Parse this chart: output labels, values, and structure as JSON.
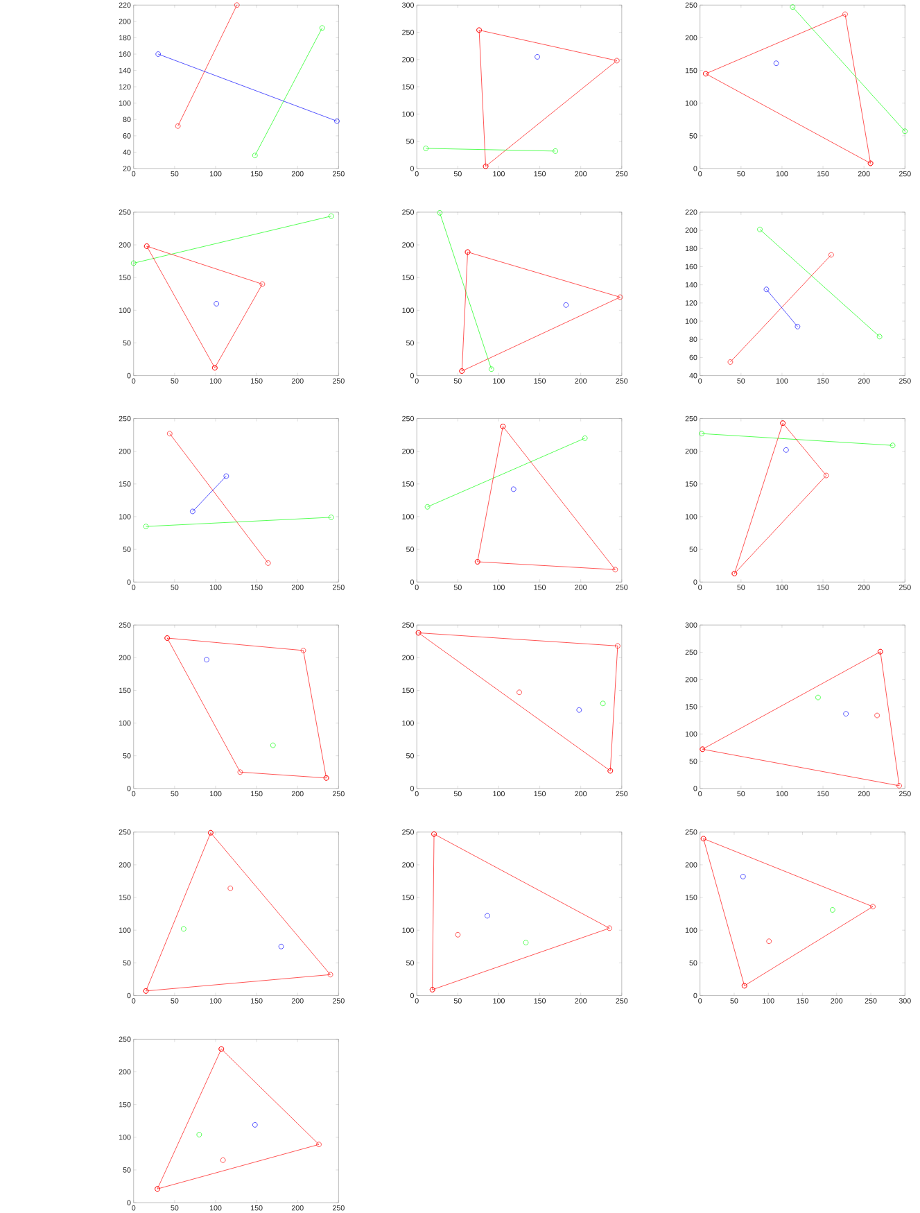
{
  "chart_data": [
    {
      "type": "line",
      "marker": "circle",
      "xlim": [
        0,
        250
      ],
      "ylim": [
        20,
        220
      ],
      "xticks": [
        0,
        50,
        100,
        150,
        200,
        250
      ],
      "yticks": [
        20,
        40,
        60,
        80,
        100,
        120,
        140,
        160,
        180,
        200,
        220
      ],
      "series": [
        {
          "color": "#ff0000",
          "x": [
            54,
            126
          ],
          "values": [
            72,
            220
          ]
        },
        {
          "color": "#00ff00",
          "x": [
            148,
            230
          ],
          "values": [
            36,
            192
          ]
        },
        {
          "color": "#0000ff",
          "x": [
            30,
            248
          ],
          "values": [
            160,
            78
          ]
        }
      ]
    },
    {
      "type": "line",
      "marker": "circle",
      "xlim": [
        0,
        250
      ],
      "ylim": [
        0,
        300
      ],
      "xticks": [
        0,
        50,
        100,
        150,
        200,
        250
      ],
      "yticks": [
        0,
        50,
        100,
        150,
        200,
        250,
        300
      ],
      "series": [
        {
          "type": "line",
          "color": "#ff0000",
          "x": [
            76,
            244,
            84,
            76
          ],
          "values": [
            254,
            198,
            4,
            254
          ]
        },
        {
          "type": "scatter",
          "color": "#0000ff",
          "x": [
            147
          ],
          "values": [
            205
          ]
        },
        {
          "type": "line",
          "color": "#00ff00",
          "x": [
            11,
            169
          ],
          "values": [
            37,
            32
          ]
        }
      ]
    },
    {
      "type": "line",
      "marker": "circle",
      "xlim": [
        0,
        250
      ],
      "ylim": [
        0,
        250
      ],
      "xticks": [
        0,
        50,
        100,
        150,
        200,
        250
      ],
      "yticks": [
        0,
        50,
        100,
        150,
        200,
        250
      ],
      "series": [
        {
          "type": "line",
          "color": "#ff0000",
          "x": [
            7,
            177,
            208,
            7
          ],
          "values": [
            145,
            236,
            8,
            145
          ]
        },
        {
          "type": "line",
          "color": "#00ff00",
          "x": [
            113,
            250
          ],
          "values": [
            247,
            57
          ]
        },
        {
          "type": "scatter",
          "color": "#0000ff",
          "x": [
            93
          ],
          "values": [
            161
          ]
        }
      ]
    },
    {
      "type": "line",
      "marker": "circle",
      "xlim": [
        0,
        250
      ],
      "ylim": [
        0,
        250
      ],
      "xticks": [
        0,
        50,
        100,
        150,
        200,
        250
      ],
      "yticks": [
        0,
        50,
        100,
        150,
        200,
        250
      ],
      "series": [
        {
          "type": "line",
          "color": "#00ff00",
          "x": [
            0,
            241
          ],
          "values": [
            172,
            244
          ]
        },
        {
          "type": "line",
          "color": "#ff0000",
          "x": [
            16,
            157,
            99,
            16
          ],
          "values": [
            198,
            140,
            12,
            198
          ]
        },
        {
          "type": "scatter",
          "color": "#0000ff",
          "x": [
            101
          ],
          "values": [
            110
          ]
        }
      ]
    },
    {
      "type": "line",
      "marker": "circle",
      "xlim": [
        0,
        250
      ],
      "ylim": [
        0,
        250
      ],
      "xticks": [
        0,
        50,
        100,
        150,
        200,
        250
      ],
      "yticks": [
        0,
        50,
        100,
        150,
        200,
        250
      ],
      "series": [
        {
          "type": "line",
          "color": "#00ff00",
          "x": [
            28,
            91
          ],
          "values": [
            249,
            10
          ]
        },
        {
          "type": "line",
          "color": "#ff0000",
          "x": [
            62,
            248,
            55,
            62
          ],
          "values": [
            189,
            120,
            7,
            189
          ]
        },
        {
          "type": "scatter",
          "color": "#0000ff",
          "x": [
            182
          ],
          "values": [
            108
          ]
        }
      ]
    },
    {
      "type": "line",
      "marker": "circle",
      "xlim": [
        0,
        250
      ],
      "ylim": [
        40,
        220
      ],
      "xticks": [
        0,
        50,
        100,
        150,
        200,
        250
      ],
      "yticks": [
        40,
        60,
        80,
        100,
        120,
        140,
        160,
        180,
        200,
        220
      ],
      "series": [
        {
          "type": "line",
          "color": "#00ff00",
          "x": [
            73,
            219
          ],
          "values": [
            201,
            83
          ]
        },
        {
          "type": "line",
          "color": "#ff0000",
          "x": [
            37,
            160
          ],
          "values": [
            55,
            173
          ]
        },
        {
          "type": "line",
          "color": "#0000ff",
          "x": [
            81,
            119
          ],
          "values": [
            135,
            94
          ]
        }
      ]
    },
    {
      "type": "line",
      "marker": "circle",
      "xlim": [
        0,
        250
      ],
      "ylim": [
        0,
        250
      ],
      "xticks": [
        0,
        50,
        100,
        150,
        200,
        250
      ],
      "yticks": [
        0,
        50,
        100,
        150,
        200,
        250
      ],
      "series": [
        {
          "type": "line",
          "color": "#ff0000",
          "x": [
            44,
            164
          ],
          "values": [
            227,
            29
          ]
        },
        {
          "type": "line",
          "color": "#0000ff",
          "x": [
            72,
            113
          ],
          "values": [
            108,
            162
          ]
        },
        {
          "type": "line",
          "color": "#00ff00",
          "x": [
            15,
            241
          ],
          "values": [
            85,
            99
          ]
        }
      ]
    },
    {
      "type": "line",
      "marker": "circle",
      "xlim": [
        0,
        250
      ],
      "ylim": [
        0,
        250
      ],
      "xticks": [
        0,
        50,
        100,
        150,
        200,
        250
      ],
      "yticks": [
        0,
        50,
        100,
        150,
        200,
        250
      ],
      "series": [
        {
          "type": "line",
          "color": "#00ff00",
          "x": [
            13,
            205
          ],
          "values": [
            115,
            220
          ]
        },
        {
          "type": "line",
          "color": "#ff0000",
          "x": [
            105,
            242,
            74,
            105
          ],
          "values": [
            238,
            19,
            31,
            238
          ]
        },
        {
          "type": "scatter",
          "color": "#0000ff",
          "x": [
            118
          ],
          "values": [
            142
          ]
        }
      ]
    },
    {
      "type": "line",
      "marker": "circle",
      "xlim": [
        0,
        250
      ],
      "ylim": [
        0,
        250
      ],
      "xticks": [
        0,
        50,
        100,
        150,
        200,
        250
      ],
      "yticks": [
        0,
        50,
        100,
        150,
        200,
        250
      ],
      "series": [
        {
          "type": "line",
          "color": "#00ff00",
          "x": [
            2,
            235
          ],
          "values": [
            227,
            209
          ]
        },
        {
          "type": "line",
          "color": "#ff0000",
          "x": [
            101,
            154,
            42,
            101
          ],
          "values": [
            243,
            163,
            13,
            243
          ]
        },
        {
          "type": "scatter",
          "color": "#0000ff",
          "x": [
            105
          ],
          "values": [
            202
          ]
        }
      ]
    },
    {
      "type": "line",
      "marker": "circle",
      "xlim": [
        0,
        250
      ],
      "ylim": [
        0,
        250
      ],
      "xticks": [
        0,
        50,
        100,
        150,
        200,
        250
      ],
      "yticks": [
        0,
        50,
        100,
        150,
        200,
        250
      ],
      "series": [
        {
          "type": "line",
          "color": "#ff0000",
          "x": [
            41,
            207,
            235,
            130,
            41
          ],
          "values": [
            230,
            211,
            16,
            25,
            230
          ]
        },
        {
          "type": "scatter",
          "color": "#0000ff",
          "x": [
            89
          ],
          "values": [
            197
          ]
        },
        {
          "type": "scatter",
          "color": "#00ff00",
          "x": [
            170
          ],
          "values": [
            66
          ]
        }
      ]
    },
    {
      "type": "line",
      "marker": "circle",
      "xlim": [
        0,
        250
      ],
      "ylim": [
        0,
        250
      ],
      "xticks": [
        0,
        50,
        100,
        150,
        200,
        250
      ],
      "yticks": [
        0,
        50,
        100,
        150,
        200,
        250
      ],
      "series": [
        {
          "type": "line",
          "color": "#ff0000",
          "x": [
            2,
            245,
            236,
            2
          ],
          "values": [
            238,
            218,
            27,
            238
          ]
        },
        {
          "type": "scatter",
          "color": "#ff0000",
          "x": [
            125
          ],
          "values": [
            147
          ]
        },
        {
          "type": "scatter",
          "color": "#0000ff",
          "x": [
            198
          ],
          "values": [
            120
          ]
        },
        {
          "type": "scatter",
          "color": "#00ff00",
          "x": [
            227
          ],
          "values": [
            130
          ]
        }
      ]
    },
    {
      "type": "line",
      "marker": "circle",
      "xlim": [
        0,
        250
      ],
      "ylim": [
        0,
        300
      ],
      "xticks": [
        0,
        50,
        100,
        150,
        200,
        250
      ],
      "yticks": [
        0,
        50,
        100,
        150,
        200,
        250,
        300
      ],
      "series": [
        {
          "type": "line",
          "color": "#ff0000",
          "x": [
            220,
            243,
            3,
            220
          ],
          "values": [
            251,
            5,
            72,
            251
          ]
        },
        {
          "type": "scatter",
          "color": "#00ff00",
          "x": [
            144
          ],
          "values": [
            167
          ]
        },
        {
          "type": "scatter",
          "color": "#0000ff",
          "x": [
            178
          ],
          "values": [
            137
          ]
        },
        {
          "type": "scatter",
          "color": "#ff0000",
          "x": [
            216
          ],
          "values": [
            134
          ]
        }
      ]
    },
    {
      "type": "line",
      "marker": "circle",
      "xlim": [
        0,
        250
      ],
      "ylim": [
        0,
        250
      ],
      "xticks": [
        0,
        50,
        100,
        150,
        200,
        250
      ],
      "yticks": [
        0,
        50,
        100,
        150,
        200,
        250
      ],
      "series": [
        {
          "type": "line",
          "color": "#ff0000",
          "x": [
            94,
            240,
            15,
            94
          ],
          "values": [
            249,
            32,
            7,
            249
          ]
        },
        {
          "type": "scatter",
          "color": "#ff0000",
          "x": [
            118
          ],
          "values": [
            164
          ]
        },
        {
          "type": "scatter",
          "color": "#00ff00",
          "x": [
            61
          ],
          "values": [
            102
          ]
        },
        {
          "type": "scatter",
          "color": "#0000ff",
          "x": [
            180
          ],
          "values": [
            75
          ]
        }
      ]
    },
    {
      "type": "line",
      "marker": "circle",
      "xlim": [
        0,
        250
      ],
      "ylim": [
        0,
        250
      ],
      "xticks": [
        0,
        50,
        100,
        150,
        200,
        250
      ],
      "yticks": [
        0,
        50,
        100,
        150,
        200,
        250
      ],
      "series": [
        {
          "type": "line",
          "color": "#ff0000",
          "x": [
            21,
            235,
            19,
            21
          ],
          "values": [
            247,
            103,
            9,
            247
          ]
        },
        {
          "type": "scatter",
          "color": "#ff0000",
          "x": [
            50
          ],
          "values": [
            93
          ]
        },
        {
          "type": "scatter",
          "color": "#0000ff",
          "x": [
            86
          ],
          "values": [
            122
          ]
        },
        {
          "type": "scatter",
          "color": "#00ff00",
          "x": [
            133
          ],
          "values": [
            81
          ]
        }
      ]
    },
    {
      "type": "line",
      "marker": "circle",
      "xlim": [
        0,
        300
      ],
      "ylim": [
        0,
        250
      ],
      "xticks": [
        0,
        50,
        100,
        150,
        200,
        250,
        300
      ],
      "yticks": [
        0,
        50,
        100,
        150,
        200,
        250
      ],
      "series": [
        {
          "type": "line",
          "color": "#ff0000",
          "x": [
            5,
            253,
            65,
            5
          ],
          "values": [
            240,
            136,
            15,
            240
          ]
        },
        {
          "type": "scatter",
          "color": "#0000ff",
          "x": [
            63
          ],
          "values": [
            182
          ]
        },
        {
          "type": "scatter",
          "color": "#00ff00",
          "x": [
            194
          ],
          "values": [
            131
          ]
        },
        {
          "type": "scatter",
          "color": "#ff0000",
          "x": [
            101
          ],
          "values": [
            83
          ]
        }
      ]
    },
    {
      "type": "line",
      "marker": "circle",
      "xlim": [
        0,
        250
      ],
      "ylim": [
        0,
        250
      ],
      "xticks": [
        0,
        50,
        100,
        150,
        200,
        250
      ],
      "yticks": [
        0,
        50,
        100,
        150,
        200,
        250
      ],
      "series": [
        {
          "type": "line",
          "color": "#ff0000",
          "x": [
            107,
            226,
            29,
            107
          ],
          "values": [
            235,
            89,
            21,
            235
          ]
        },
        {
          "type": "scatter",
          "color": "#00ff00",
          "x": [
            80
          ],
          "values": [
            104
          ]
        },
        {
          "type": "scatter",
          "color": "#0000ff",
          "x": [
            148
          ],
          "values": [
            119
          ]
        },
        {
          "type": "scatter",
          "color": "#ff0000",
          "x": [
            109
          ],
          "values": [
            65
          ]
        }
      ]
    }
  ]
}
